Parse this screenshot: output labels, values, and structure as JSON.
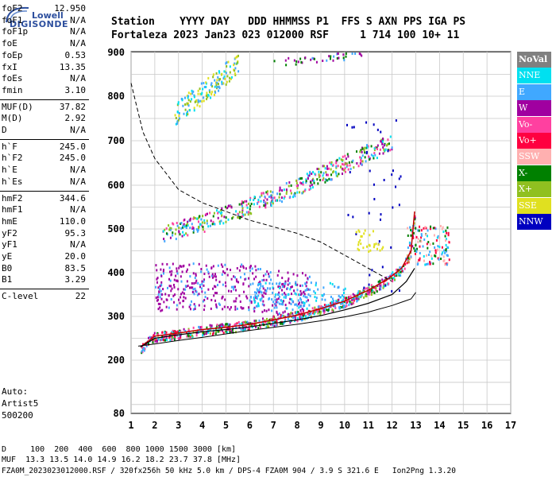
{
  "brand": {
    "top": "Lowell",
    "main": "DIGISONDE"
  },
  "header": {
    "row1": "Station    YYYY DAY   DDD HHMMSS P1  FFS S AXN PPS IGA PS",
    "row2": "Fortaleza 2023 Jan23 023 012000 RSF     1 714 100 10+ 11"
  },
  "params": [
    {
      "name": "foF2",
      "value": "12.950"
    },
    {
      "name": "foF1",
      "value": "N/A"
    },
    {
      "name": "foF1p",
      "value": "N/A"
    },
    {
      "name": "foE",
      "value": "N/A"
    },
    {
      "name": "foEp",
      "value": "0.53"
    },
    {
      "name": "fxI",
      "value": "13.35"
    },
    {
      "name": "foEs",
      "value": "N/A"
    },
    {
      "name": "fmin",
      "value": "3.10"
    },
    {
      "name": "MUF(D)",
      "value": "37.82"
    },
    {
      "name": "M(D)",
      "value": "2.92"
    },
    {
      "name": "D",
      "value": "N/A"
    },
    {
      "name": "h`F",
      "value": "245.0"
    },
    {
      "name": "h`F2",
      "value": "245.0"
    },
    {
      "name": "h`E",
      "value": "N/A"
    },
    {
      "name": "h`Es",
      "value": "N/A"
    },
    {
      "name": "hmF2",
      "value": "344.6"
    },
    {
      "name": "hmF1",
      "value": "N/A"
    },
    {
      "name": "hmE",
      "value": "110.0"
    },
    {
      "name": "yF2",
      "value": "95.3"
    },
    {
      "name": "yF1",
      "value": "N/A"
    },
    {
      "name": "yE",
      "value": "20.0"
    },
    {
      "name": "B0",
      "value": "83.5"
    },
    {
      "name": "B1",
      "value": "3.29"
    },
    {
      "name": "C-level",
      "value": "22"
    }
  ],
  "auto": {
    "label": "Auto:",
    "program": "Artist5",
    "version": "500200"
  },
  "footer": {
    "d_row": "D     100  200  400  600  800 1000 1500 3000 [km]",
    "muf_row": "MUF  13.3 13.5 14.0 14.9 16.2 18.2 23.7 37.8 [MHz]",
    "info_row": "FZA0M_2023023012000.RSF / 320fx256h 50 kHz 5.0 km / DPS-4 FZA0M 904 / 3.9 S 321.6 E   Ion2Png 1.3.20"
  },
  "legend": [
    {
      "label": "NoVal",
      "color": "#808080"
    },
    {
      "label": "NNE",
      "color": "#00e0f0"
    },
    {
      "label": "E",
      "color": "#40a8ff"
    },
    {
      "label": "W",
      "color": "#a000a0"
    },
    {
      "label": "Vo-",
      "color": "#ff40a0"
    },
    {
      "label": "Vo+",
      "color": "#ff0040"
    },
    {
      "label": "SSW",
      "color": "#ffb0b0"
    },
    {
      "label": "X-",
      "color": "#008000"
    },
    {
      "label": "X+",
      "color": "#90c020"
    },
    {
      "label": "SSE",
      "color": "#e0e020"
    },
    {
      "label": "NNW",
      "color": "#0000c0"
    }
  ],
  "chart_data": {
    "type": "scatter",
    "xlim": [
      1,
      17
    ],
    "ylim": [
      80,
      900
    ],
    "x_ticks": [
      1,
      2,
      3,
      4,
      5,
      6,
      7,
      8,
      9,
      10,
      11,
      12,
      13,
      14,
      15,
      16,
      17
    ],
    "y_ticks": [
      80,
      200,
      300,
      400,
      500,
      600,
      700,
      800,
      900
    ],
    "y_scale": "log-like (virtual height)",
    "grid": true,
    "trace_o_ordinary": {
      "x": [
        1.4,
        2,
        3,
        4,
        5,
        6,
        7,
        8,
        9,
        10,
        11,
        11.8,
        12.4,
        12.8,
        12.95
      ],
      "y": [
        230,
        255,
        262,
        270,
        275,
        282,
        292,
        303,
        318,
        335,
        360,
        385,
        410,
        450,
        540
      ]
    },
    "trace_o_ordinary_lower": {
      "x": [
        1.4,
        2,
        3,
        4,
        5,
        6,
        7,
        8,
        9,
        10,
        11,
        12,
        12.6,
        12.95
      ],
      "y": [
        230,
        250,
        258,
        265,
        270,
        276,
        284,
        292,
        302,
        315,
        330,
        350,
        380,
        410
      ]
    },
    "profile_real_height": {
      "x": [
        1.3,
        2,
        3,
        4,
        5,
        6,
        7,
        8,
        9,
        10,
        11,
        12,
        12.8,
        13.0
      ],
      "y": [
        232,
        237,
        245,
        252,
        260,
        268,
        275,
        282,
        290,
        299,
        310,
        325,
        340,
        355
      ]
    },
    "second_hop": {
      "x": [
        2.3,
        3,
        4,
        5,
        6,
        7,
        8,
        9,
        10,
        11,
        12
      ],
      "y": [
        490,
        502,
        515,
        535,
        555,
        575,
        600,
        625,
        650,
        675,
        700
      ]
    },
    "mufd_curve": {
      "x": [
        1.0,
        1.5,
        2,
        3,
        4,
        5,
        6,
        7,
        8,
        9,
        10,
        11,
        12
      ],
      "y": [
        830,
        720,
        660,
        590,
        560,
        540,
        520,
        505,
        490,
        470,
        440,
        410,
        380
      ]
    }
  }
}
